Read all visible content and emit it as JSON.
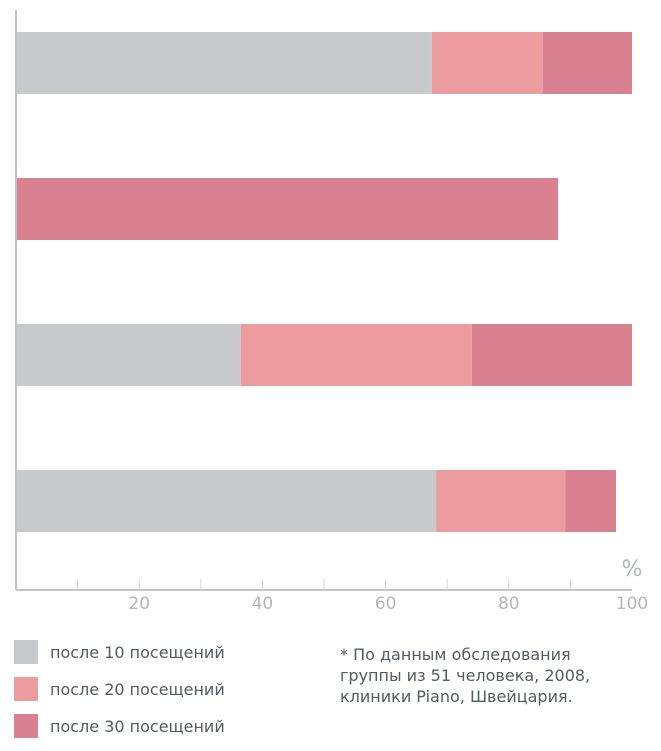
{
  "chart_data": {
    "type": "bar",
    "orientation": "horizontal",
    "stacked": true,
    "unit_label": "%",
    "xlim": [
      0,
      100
    ],
    "x_ticks": [
      20,
      40,
      60,
      80,
      100
    ],
    "categories": [
      "",
      "",
      "",
      ""
    ],
    "series": [
      {
        "name": "после 10 посещений",
        "color": "#c8c9cb",
        "values": [
          67.5,
          0,
          36.5,
          68.2
        ]
      },
      {
        "name": "после 20 посещений",
        "color": "#ec9b9e",
        "values": [
          18.0,
          0,
          37.5,
          21.0
        ]
      },
      {
        "name": "после 30 посещений",
        "color": "#d98191",
        "values": [
          14.5,
          88.0,
          26.0,
          8.2
        ]
      }
    ],
    "legend_position": "bottom-left",
    "grid": false
  },
  "note": {
    "lines": [
      "* По данным обследования",
      "группы из 51 человека, 2008,",
      "клиники Piano, Швейцария."
    ]
  }
}
